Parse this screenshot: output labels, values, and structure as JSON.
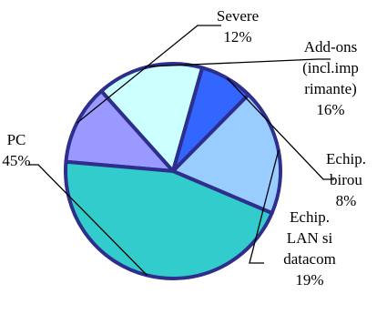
{
  "chart_data": {
    "type": "pie",
    "title": "",
    "slices": [
      {
        "label_lines": [
          "Severe",
          "12%"
        ],
        "value": 12,
        "color": "#9999FF"
      },
      {
        "label_lines": [
          "Add-ons",
          "(incl.imp",
          "rimante)",
          "16%"
        ],
        "value": 16,
        "color": "#CCFFFF"
      },
      {
        "label_lines": [
          "Echip.",
          "birou",
          "8%"
        ],
        "value": 8,
        "color": "#3366FF"
      },
      {
        "label_lines": [
          "Echip.",
          "LAN si",
          "datacom",
          "19%"
        ],
        "value": 19,
        "color": "#99CCFF"
      },
      {
        "label_lines": [
          "PC",
          "45%"
        ],
        "value": 45,
        "color": "#33CCCC"
      }
    ]
  }
}
